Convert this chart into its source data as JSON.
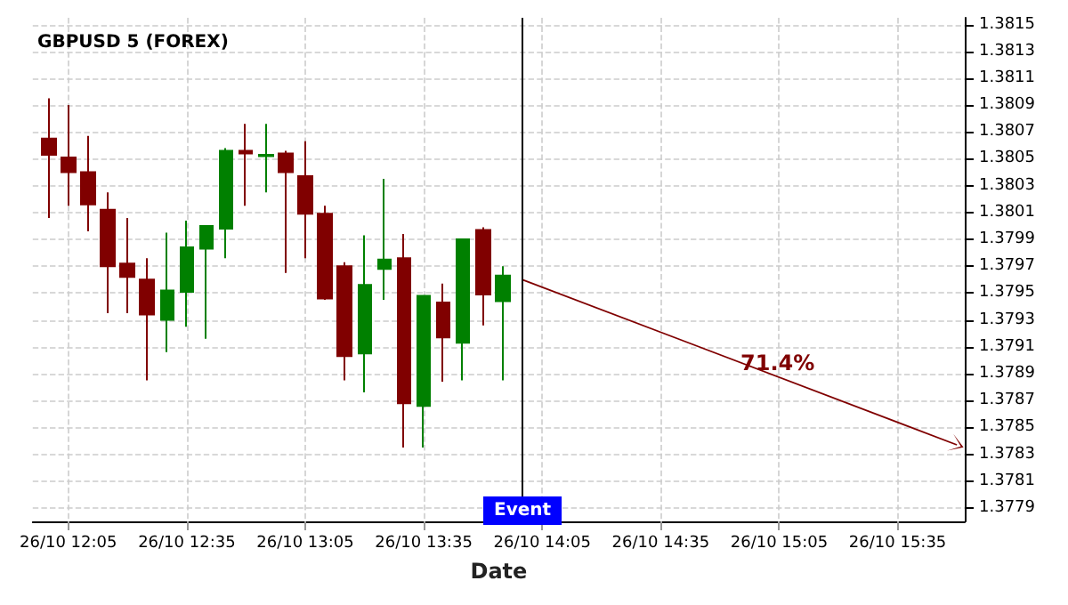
{
  "chart_data": {
    "type": "candlestick",
    "title": "GBPUSD 5 (FOREX)",
    "xlabel": "Date",
    "x": [
      "--10-26T12:00",
      "--10-26T12:05",
      "--10-26T12:10",
      "--10-26T12:15",
      "--10-26T12:20",
      "--10-26T12:25",
      "--10-26T12:30",
      "--10-26T12:35",
      "--10-26T12:40",
      "--10-26T12:45",
      "--10-26T12:50",
      "--10-26T12:55",
      "--10-26T13:00",
      "--10-26T13:05",
      "--10-26T13:10",
      "--10-26T13:15",
      "--10-26T13:20",
      "--10-26T13:25",
      "--10-26T13:30",
      "--10-26T13:35",
      "--10-26T13:40",
      "--10-26T13:45",
      "--10-26T13:50",
      "--10-26T13:55"
    ],
    "ohlc": [
      [
        1.38065,
        1.38095,
        1.38006,
        1.38053
      ],
      [
        1.38051,
        1.3809,
        1.38015,
        1.3804
      ],
      [
        1.3804,
        1.38067,
        1.37996,
        1.38016
      ],
      [
        1.38012,
        1.38025,
        1.37935,
        1.3797
      ],
      [
        1.37972,
        1.38006,
        1.37935,
        1.37962
      ],
      [
        1.3796,
        1.37976,
        1.37885,
        1.37934
      ],
      [
        1.3793,
        1.37995,
        1.37906,
        1.37952
      ],
      [
        1.37951,
        1.38004,
        1.37925,
        1.37984
      ],
      [
        1.37983,
        1.38,
        1.37916,
        1.38
      ],
      [
        1.37998,
        1.38058,
        1.37976,
        1.38056
      ],
      [
        1.38056,
        1.38076,
        1.38015,
        1.38054
      ],
      [
        1.38052,
        1.38076,
        1.38025,
        1.38053
      ],
      [
        1.38054,
        1.38056,
        1.37965,
        1.3804
      ],
      [
        1.38037,
        1.38063,
        1.37976,
        1.38009
      ],
      [
        1.38009,
        1.38015,
        1.37945,
        1.37946
      ],
      [
        1.3797,
        1.37973,
        1.37885,
        1.37903
      ],
      [
        1.37905,
        1.37993,
        1.37876,
        1.37956
      ],
      [
        1.37968,
        1.38035,
        1.37945,
        1.37975
      ],
      [
        1.37976,
        1.37994,
        1.37835,
        1.37868
      ],
      [
        1.37866,
        1.37948,
        1.37835,
        1.37948
      ],
      [
        1.37943,
        1.37957,
        1.37884,
        1.37917
      ],
      [
        1.37913,
        1.3799,
        1.37885,
        1.3799
      ],
      [
        1.37997,
        1.37999,
        1.37926,
        1.37949
      ],
      [
        1.37944,
        1.3797,
        1.37885,
        1.37963
      ]
    ],
    "colors": [
      "#800000",
      "#800000",
      "#800000",
      "#800000",
      "#800000",
      "#800000",
      "#008000",
      "#008000",
      "#008000",
      "#008000",
      "#800000",
      "#008000",
      "#800000",
      "#800000",
      "#800000",
      "#800000",
      "#008000",
      "#008000",
      "#800000",
      "#008000",
      "#800000",
      "#008000",
      "#800000",
      "#008000"
    ],
    "series": [
      {
        "type": "line",
        "color": "#800000",
        "x": [
          "--10-26T14:00",
          "--10-26T15:50"
        ],
        "values": [
          1.3796,
          1.37837
        ]
      }
    ],
    "annotations": [
      "71.4%"
    ],
    "ref_lines": [
      {
        "axis": "x",
        "value": "--10-26T14:00",
        "label": "Event",
        "color": "#000000"
      }
    ],
    "xlim": [
      "--10-26T11:56",
      "--10-26T15:52"
    ],
    "xticks": [
      {
        "value": "--10-26T12:05",
        "label": "26/10 12:05"
      },
      {
        "value": "--10-26T12:35",
        "label": "26/10 12:35"
      },
      {
        "value": "--10-26T13:05",
        "label": "26/10 13:05"
      },
      {
        "value": "--10-26T13:35",
        "label": "26/10 13:35"
      },
      {
        "value": "--10-26T14:05",
        "label": "26/10 14:05"
      },
      {
        "value": "--10-26T14:35",
        "label": "26/10 14:35"
      },
      {
        "value": "--10-26T15:05",
        "label": "26/10 15:05"
      },
      {
        "value": "--10-26T15:35",
        "label": "26/10 15:35"
      }
    ],
    "ylim": [
      1.3778,
      1.38155
    ],
    "yticks": [
      1.3779,
      1.3781,
      1.3783,
      1.3785,
      1.3787,
      1.3789,
      1.3791,
      1.3793,
      1.3795,
      1.3797,
      1.3799,
      1.3801,
      1.3803,
      1.3805,
      1.3807,
      1.3809,
      1.3811,
      1.3813,
      1.3815
    ],
    "grid": true
  }
}
